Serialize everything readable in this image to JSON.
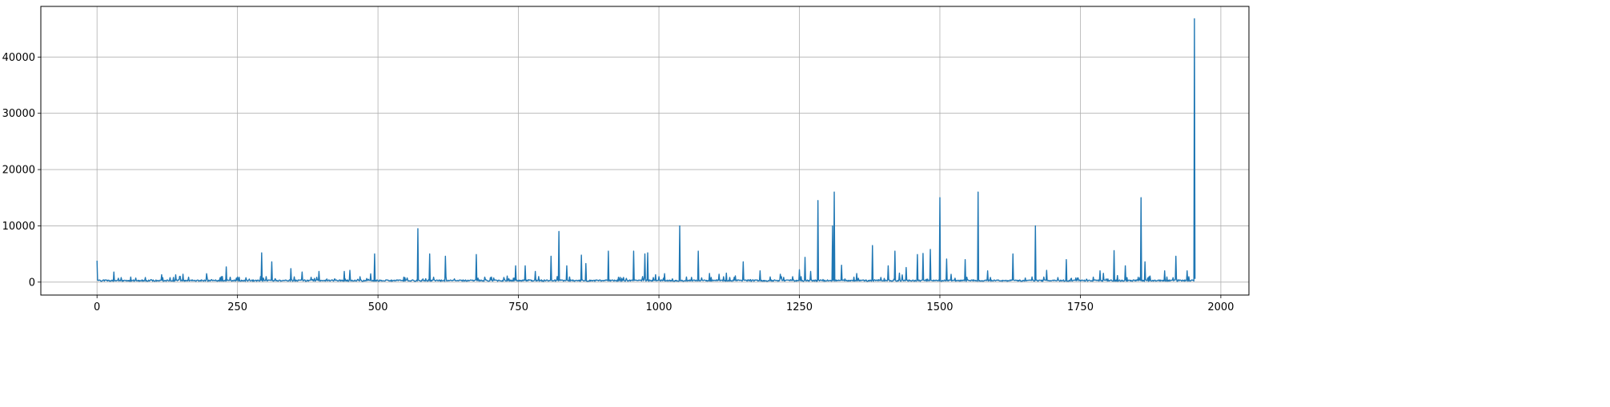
{
  "chart_data": {
    "type": "line",
    "title": "",
    "xlabel": "",
    "ylabel": "",
    "xlim": [
      -100,
      2050
    ],
    "ylim": [
      -2300,
      49000
    ],
    "grid": true,
    "legend": "none",
    "x_ticks": [
      0,
      250,
      500,
      750,
      1000,
      1250,
      1500,
      1750,
      2000
    ],
    "y_ticks": [
      0,
      10000,
      20000,
      30000,
      40000
    ],
    "x_tick_labels": [
      "0",
      "250",
      "500",
      "750",
      "1000",
      "1250",
      "1500",
      "1750",
      "2000"
    ],
    "y_tick_labels": [
      "0",
      "10000",
      "20000",
      "30000",
      "40000"
    ],
    "series_color": "#1f77b4",
    "n_points": 1955,
    "baseline_value": 150,
    "peaks": [
      [
        0,
        3800
      ],
      [
        30,
        1800
      ],
      [
        60,
        900
      ],
      [
        130,
        800
      ],
      [
        140,
        1300
      ],
      [
        195,
        1500
      ],
      [
        230,
        2700
      ],
      [
        250,
        900
      ],
      [
        293,
        5200
      ],
      [
        311,
        3600
      ],
      [
        345,
        2400
      ],
      [
        365,
        1800
      ],
      [
        395,
        1900
      ],
      [
        440,
        1900
      ],
      [
        450,
        2100
      ],
      [
        494,
        5000
      ],
      [
        571,
        9500
      ],
      [
        592,
        5000
      ],
      [
        620,
        4600
      ],
      [
        675,
        4900
      ],
      [
        700,
        800
      ],
      [
        745,
        2900
      ],
      [
        762,
        2900
      ],
      [
        780,
        1900
      ],
      [
        808,
        4600
      ],
      [
        822,
        9000
      ],
      [
        836,
        2900
      ],
      [
        862,
        4800
      ],
      [
        870,
        3300
      ],
      [
        910,
        5500
      ],
      [
        955,
        5500
      ],
      [
        975,
        5000
      ],
      [
        980,
        5200
      ],
      [
        1010,
        1500
      ],
      [
        1037,
        10000
      ],
      [
        1070,
        5500
      ],
      [
        1120,
        1600
      ],
      [
        1150,
        3600
      ],
      [
        1180,
        2000
      ],
      [
        1250,
        2200
      ],
      [
        1260,
        4400
      ],
      [
        1270,
        1900
      ],
      [
        1283,
        14500
      ],
      [
        1309,
        10000
      ],
      [
        1312,
        16000
      ],
      [
        1325,
        3000
      ],
      [
        1380,
        6500
      ],
      [
        1408,
        2900
      ],
      [
        1420,
        5500
      ],
      [
        1440,
        2600
      ],
      [
        1460,
        4900
      ],
      [
        1470,
        5100
      ],
      [
        1483,
        5800
      ],
      [
        1500,
        15000
      ],
      [
        1512,
        4100
      ],
      [
        1545,
        4000
      ],
      [
        1568,
        16000
      ],
      [
        1585,
        2000
      ],
      [
        1630,
        5000
      ],
      [
        1670,
        10000
      ],
      [
        1690,
        2100
      ],
      [
        1725,
        4000
      ],
      [
        1785,
        2000
      ],
      [
        1810,
        5600
      ],
      [
        1830,
        2900
      ],
      [
        1858,
        15000
      ],
      [
        1865,
        3600
      ],
      [
        1900,
        2000
      ],
      [
        1920,
        4600
      ],
      [
        1940,
        2000
      ],
      [
        1953,
        46800
      ]
    ]
  }
}
